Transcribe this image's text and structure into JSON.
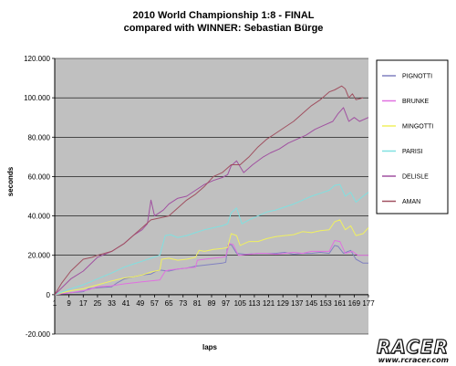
{
  "chart_data": {
    "type": "line",
    "title": "2010 World Championship 1:8 -  FINAL",
    "subtitle": "compared with WINNER: Sebastian Bürge",
    "xlabel": "laps",
    "ylabel": "seconds",
    "ylim": [
      -20000,
      120000
    ],
    "yticks": [
      "-20.000",
      "0",
      "20.000",
      "40.000",
      "60.000",
      "80.000",
      "100.000",
      "120.000"
    ],
    "xlim": [
      1,
      177
    ],
    "xticks": [
      1,
      9,
      17,
      25,
      33,
      41,
      49,
      57,
      65,
      73,
      81,
      89,
      97,
      105,
      113,
      121,
      129,
      137,
      145,
      153,
      161,
      169,
      177
    ],
    "grid": true,
    "legend_position": "right",
    "series": [
      {
        "name": "PIGNOTTI",
        "color": "#8080c0",
        "points": [
          [
            1,
            0
          ],
          [
            10,
            1000
          ],
          [
            17,
            1500
          ],
          [
            20,
            3000
          ],
          [
            25,
            3500
          ],
          [
            33,
            4000
          ],
          [
            36,
            6000
          ],
          [
            40,
            8000
          ],
          [
            45,
            9000
          ],
          [
            50,
            10000
          ],
          [
            55,
            10500
          ],
          [
            58,
            12000
          ],
          [
            60,
            12500
          ],
          [
            65,
            12000
          ],
          [
            70,
            13000
          ],
          [
            75,
            13500
          ],
          [
            80,
            14500
          ],
          [
            85,
            15000
          ],
          [
            90,
            15500
          ],
          [
            95,
            16000
          ],
          [
            97,
            16500
          ],
          [
            98,
            25000
          ],
          [
            100,
            25500
          ],
          [
            103,
            21000
          ],
          [
            108,
            20500
          ],
          [
            115,
            21000
          ],
          [
            120,
            21000
          ],
          [
            125,
            21000
          ],
          [
            130,
            21500
          ],
          [
            135,
            20500
          ],
          [
            140,
            21000
          ],
          [
            145,
            21000
          ],
          [
            150,
            21500
          ],
          [
            155,
            21000
          ],
          [
            158,
            25000
          ],
          [
            160,
            24500
          ],
          [
            163,
            21000
          ],
          [
            167,
            22500
          ],
          [
            170,
            18000
          ],
          [
            174,
            16000
          ],
          [
            177,
            16000
          ]
        ]
      },
      {
        "name": "BRUNKE",
        "color": "#e070e0",
        "points": [
          [
            1,
            0
          ],
          [
            10,
            1000
          ],
          [
            17,
            2000
          ],
          [
            20,
            2500
          ],
          [
            25,
            4000
          ],
          [
            33,
            4500
          ],
          [
            40,
            5500
          ],
          [
            45,
            6000
          ],
          [
            50,
            6500
          ],
          [
            55,
            7000
          ],
          [
            60,
            7500
          ],
          [
            63,
            12000
          ],
          [
            65,
            12500
          ],
          [
            70,
            13000
          ],
          [
            75,
            13500
          ],
          [
            80,
            14000
          ],
          [
            81,
            17500
          ],
          [
            85,
            18000
          ],
          [
            90,
            18500
          ],
          [
            95,
            19000
          ],
          [
            97,
            19500
          ],
          [
            99,
            26000
          ],
          [
            101,
            25500
          ],
          [
            104,
            20000
          ],
          [
            110,
            20500
          ],
          [
            115,
            21000
          ],
          [
            120,
            21000
          ],
          [
            125,
            20500
          ],
          [
            130,
            21000
          ],
          [
            135,
            21500
          ],
          [
            140,
            21000
          ],
          [
            145,
            22000
          ],
          [
            150,
            22000
          ],
          [
            155,
            22000
          ],
          [
            158,
            27500
          ],
          [
            161,
            27000
          ],
          [
            164,
            21000
          ],
          [
            168,
            22000
          ],
          [
            171,
            20000
          ],
          [
            177,
            20000
          ]
        ]
      },
      {
        "name": "MINGOTTI",
        "color": "#f0f060",
        "points": [
          [
            1,
            0
          ],
          [
            10,
            2000
          ],
          [
            17,
            3000
          ],
          [
            25,
            5000
          ],
          [
            33,
            7000
          ],
          [
            40,
            8500
          ],
          [
            45,
            9000
          ],
          [
            50,
            10000
          ],
          [
            55,
            11500
          ],
          [
            60,
            12500
          ],
          [
            61,
            18000
          ],
          [
            65,
            18500
          ],
          [
            70,
            17500
          ],
          [
            75,
            18000
          ],
          [
            80,
            19000
          ],
          [
            82,
            22500
          ],
          [
            85,
            22000
          ],
          [
            90,
            23000
          ],
          [
            95,
            23500
          ],
          [
            98,
            24000
          ],
          [
            100,
            31000
          ],
          [
            103,
            30000
          ],
          [
            105,
            25000
          ],
          [
            110,
            27000
          ],
          [
            115,
            27000
          ],
          [
            120,
            28500
          ],
          [
            125,
            29500
          ],
          [
            130,
            30000
          ],
          [
            135,
            30500
          ],
          [
            140,
            32000
          ],
          [
            145,
            31500
          ],
          [
            150,
            32500
          ],
          [
            155,
            33000
          ],
          [
            158,
            37000
          ],
          [
            161,
            38000
          ],
          [
            164,
            33000
          ],
          [
            167,
            35000
          ],
          [
            170,
            30000
          ],
          [
            174,
            31000
          ],
          [
            177,
            34000
          ]
        ]
      },
      {
        "name": "PARISI",
        "color": "#80e0e0",
        "points": [
          [
            1,
            0
          ],
          [
            10,
            3000
          ],
          [
            17,
            5000
          ],
          [
            25,
            8000
          ],
          [
            33,
            11000
          ],
          [
            40,
            14000
          ],
          [
            45,
            15500
          ],
          [
            50,
            17000
          ],
          [
            55,
            18500
          ],
          [
            60,
            20000
          ],
          [
            63,
            30000
          ],
          [
            66,
            30500
          ],
          [
            70,
            29000
          ],
          [
            75,
            30000
          ],
          [
            80,
            31500
          ],
          [
            85,
            33000
          ],
          [
            90,
            34000
          ],
          [
            95,
            35000
          ],
          [
            98,
            36000
          ],
          [
            100,
            41500
          ],
          [
            103,
            44000
          ],
          [
            106,
            36000
          ],
          [
            110,
            38000
          ],
          [
            115,
            40000
          ],
          [
            120,
            42000
          ],
          [
            125,
            43000
          ],
          [
            130,
            44500
          ],
          [
            135,
            46000
          ],
          [
            140,
            48000
          ],
          [
            145,
            50000
          ],
          [
            150,
            51500
          ],
          [
            155,
            53000
          ],
          [
            158,
            55500
          ],
          [
            161,
            56000
          ],
          [
            164,
            50000
          ],
          [
            167,
            52000
          ],
          [
            170,
            47000
          ],
          [
            174,
            50000
          ],
          [
            177,
            52000
          ]
        ]
      },
      {
        "name": "DELISLE",
        "color": "#a050a0",
        "points": [
          [
            1,
            0
          ],
          [
            10,
            8000
          ],
          [
            17,
            12000
          ],
          [
            25,
            19000
          ],
          [
            33,
            22000
          ],
          [
            40,
            26000
          ],
          [
            45,
            30000
          ],
          [
            50,
            33000
          ],
          [
            53,
            36000
          ],
          [
            55,
            48000
          ],
          [
            57,
            40000
          ],
          [
            62,
            43000
          ],
          [
            65,
            46000
          ],
          [
            70,
            49000
          ],
          [
            75,
            50000
          ],
          [
            80,
            53000
          ],
          [
            85,
            56000
          ],
          [
            90,
            58000
          ],
          [
            95,
            59500
          ],
          [
            98,
            61000
          ],
          [
            100,
            65500
          ],
          [
            103,
            68000
          ],
          [
            107,
            62000
          ],
          [
            112,
            66000
          ],
          [
            118,
            70000
          ],
          [
            122,
            72000
          ],
          [
            127,
            74000
          ],
          [
            132,
            77000
          ],
          [
            137,
            79000
          ],
          [
            142,
            81000
          ],
          [
            147,
            84000
          ],
          [
            152,
            86000
          ],
          [
            157,
            88000
          ],
          [
            160,
            92000
          ],
          [
            163,
            95000
          ],
          [
            166,
            88000
          ],
          [
            169,
            90000
          ],
          [
            172,
            88000
          ],
          [
            177,
            90000
          ]
        ]
      },
      {
        "name": "AMAN",
        "color": "#a05060",
        "points": [
          [
            1,
            0
          ],
          [
            5,
            6000
          ],
          [
            10,
            12000
          ],
          [
            17,
            18000
          ],
          [
            22,
            19000
          ],
          [
            25,
            20000
          ],
          [
            33,
            22000
          ],
          [
            40,
            26000
          ],
          [
            45,
            30000
          ],
          [
            50,
            34000
          ],
          [
            55,
            38000
          ],
          [
            60,
            39000
          ],
          [
            65,
            40000
          ],
          [
            70,
            44000
          ],
          [
            75,
            48000
          ],
          [
            80,
            51000
          ],
          [
            85,
            55000
          ],
          [
            90,
            60000
          ],
          [
            95,
            62000
          ],
          [
            100,
            66000
          ],
          [
            105,
            66000
          ],
          [
            110,
            70000
          ],
          [
            115,
            75000
          ],
          [
            120,
            79000
          ],
          [
            125,
            82000
          ],
          [
            130,
            85000
          ],
          [
            135,
            88000
          ],
          [
            140,
            92000
          ],
          [
            145,
            96000
          ],
          [
            150,
            99000
          ],
          [
            155,
            103000
          ],
          [
            158,
            104000
          ],
          [
            162,
            106000
          ],
          [
            164,
            104500
          ],
          [
            166,
            100000
          ],
          [
            168,
            102000
          ],
          [
            170,
            99000
          ],
          [
            174,
            100000
          ]
        ]
      }
    ]
  },
  "watermark": {
    "logo": "RACER",
    "url": "www.rcracer.com"
  }
}
